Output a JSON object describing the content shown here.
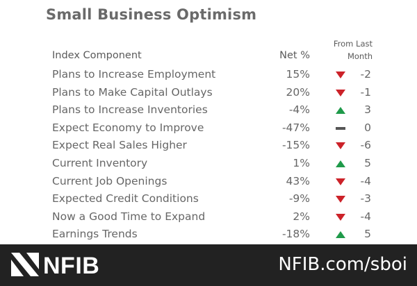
{
  "title": "Small Business Optimism",
  "headers": {
    "component": "Index Component",
    "net": "Net %",
    "from_last_line1": "From Last",
    "from_last_line2": "Month"
  },
  "colors": {
    "up": "#1f9a4a",
    "down": "#cc2229",
    "flat": "#555555",
    "footer_bg": "#222222"
  },
  "rows": [
    {
      "label": "Plans to Increase Employment",
      "net": "15%",
      "direction": "down",
      "change": "-2"
    },
    {
      "label": "Plans to Make Capital Outlays",
      "net": "20%",
      "direction": "down",
      "change": "-1"
    },
    {
      "label": "Plans to Increase Inventories",
      "net": "-4%",
      "direction": "up",
      "change": "3"
    },
    {
      "label": "Expect Economy to Improve",
      "net": "-47%",
      "direction": "flat",
      "change": "0"
    },
    {
      "label": "Expect Real Sales Higher",
      "net": "-15%",
      "direction": "down",
      "change": "-6"
    },
    {
      "label": "Current Inventory",
      "net": "1%",
      "direction": "up",
      "change": "5"
    },
    {
      "label": "Current Job Openings",
      "net": "43%",
      "direction": "down",
      "change": "-4"
    },
    {
      "label": "Expected Credit Conditions",
      "net": "-9%",
      "direction": "down",
      "change": "-3"
    },
    {
      "label": "Now a Good Time to Expand",
      "net": "2%",
      "direction": "down",
      "change": "-4"
    },
    {
      "label": "Earnings Trends",
      "net": "-18%",
      "direction": "up",
      "change": "5"
    }
  ],
  "footer": {
    "brand": "NFIB",
    "url": "NFIB.com/sboi",
    "logo_icon": "nfib-logo-icon"
  }
}
